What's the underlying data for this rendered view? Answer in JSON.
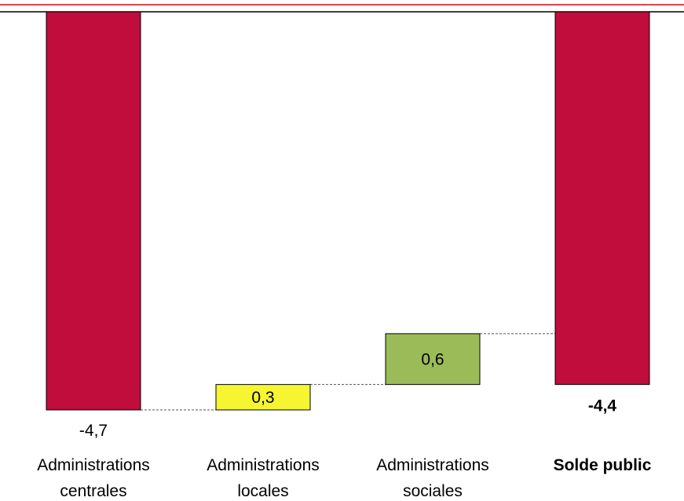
{
  "chart_data": {
    "type": "waterfall",
    "categories": [
      {
        "line1": "Administrations",
        "line2": "centrales",
        "bold": false
      },
      {
        "line1": "Administrations",
        "line2": "locales",
        "bold": false
      },
      {
        "line1": "Administrations",
        "line2": "sociales",
        "bold": false
      },
      {
        "line1": "Solde public",
        "line2": "",
        "bold": true
      }
    ],
    "values": [
      -4.7,
      0.3,
      0.6,
      -4.4
    ],
    "labels": [
      "-4,7",
      "0,3",
      "0,6",
      "-4,4"
    ],
    "is_total": [
      false,
      false,
      false,
      true
    ],
    "colors": [
      "#c00d3c",
      "#f5f532",
      "#9bbb59",
      "#c00d3c"
    ],
    "ylim": [
      -4.7,
      0
    ],
    "top_rule_color": "#e8434b",
    "connector_style": "dashed",
    "grid": false
  }
}
